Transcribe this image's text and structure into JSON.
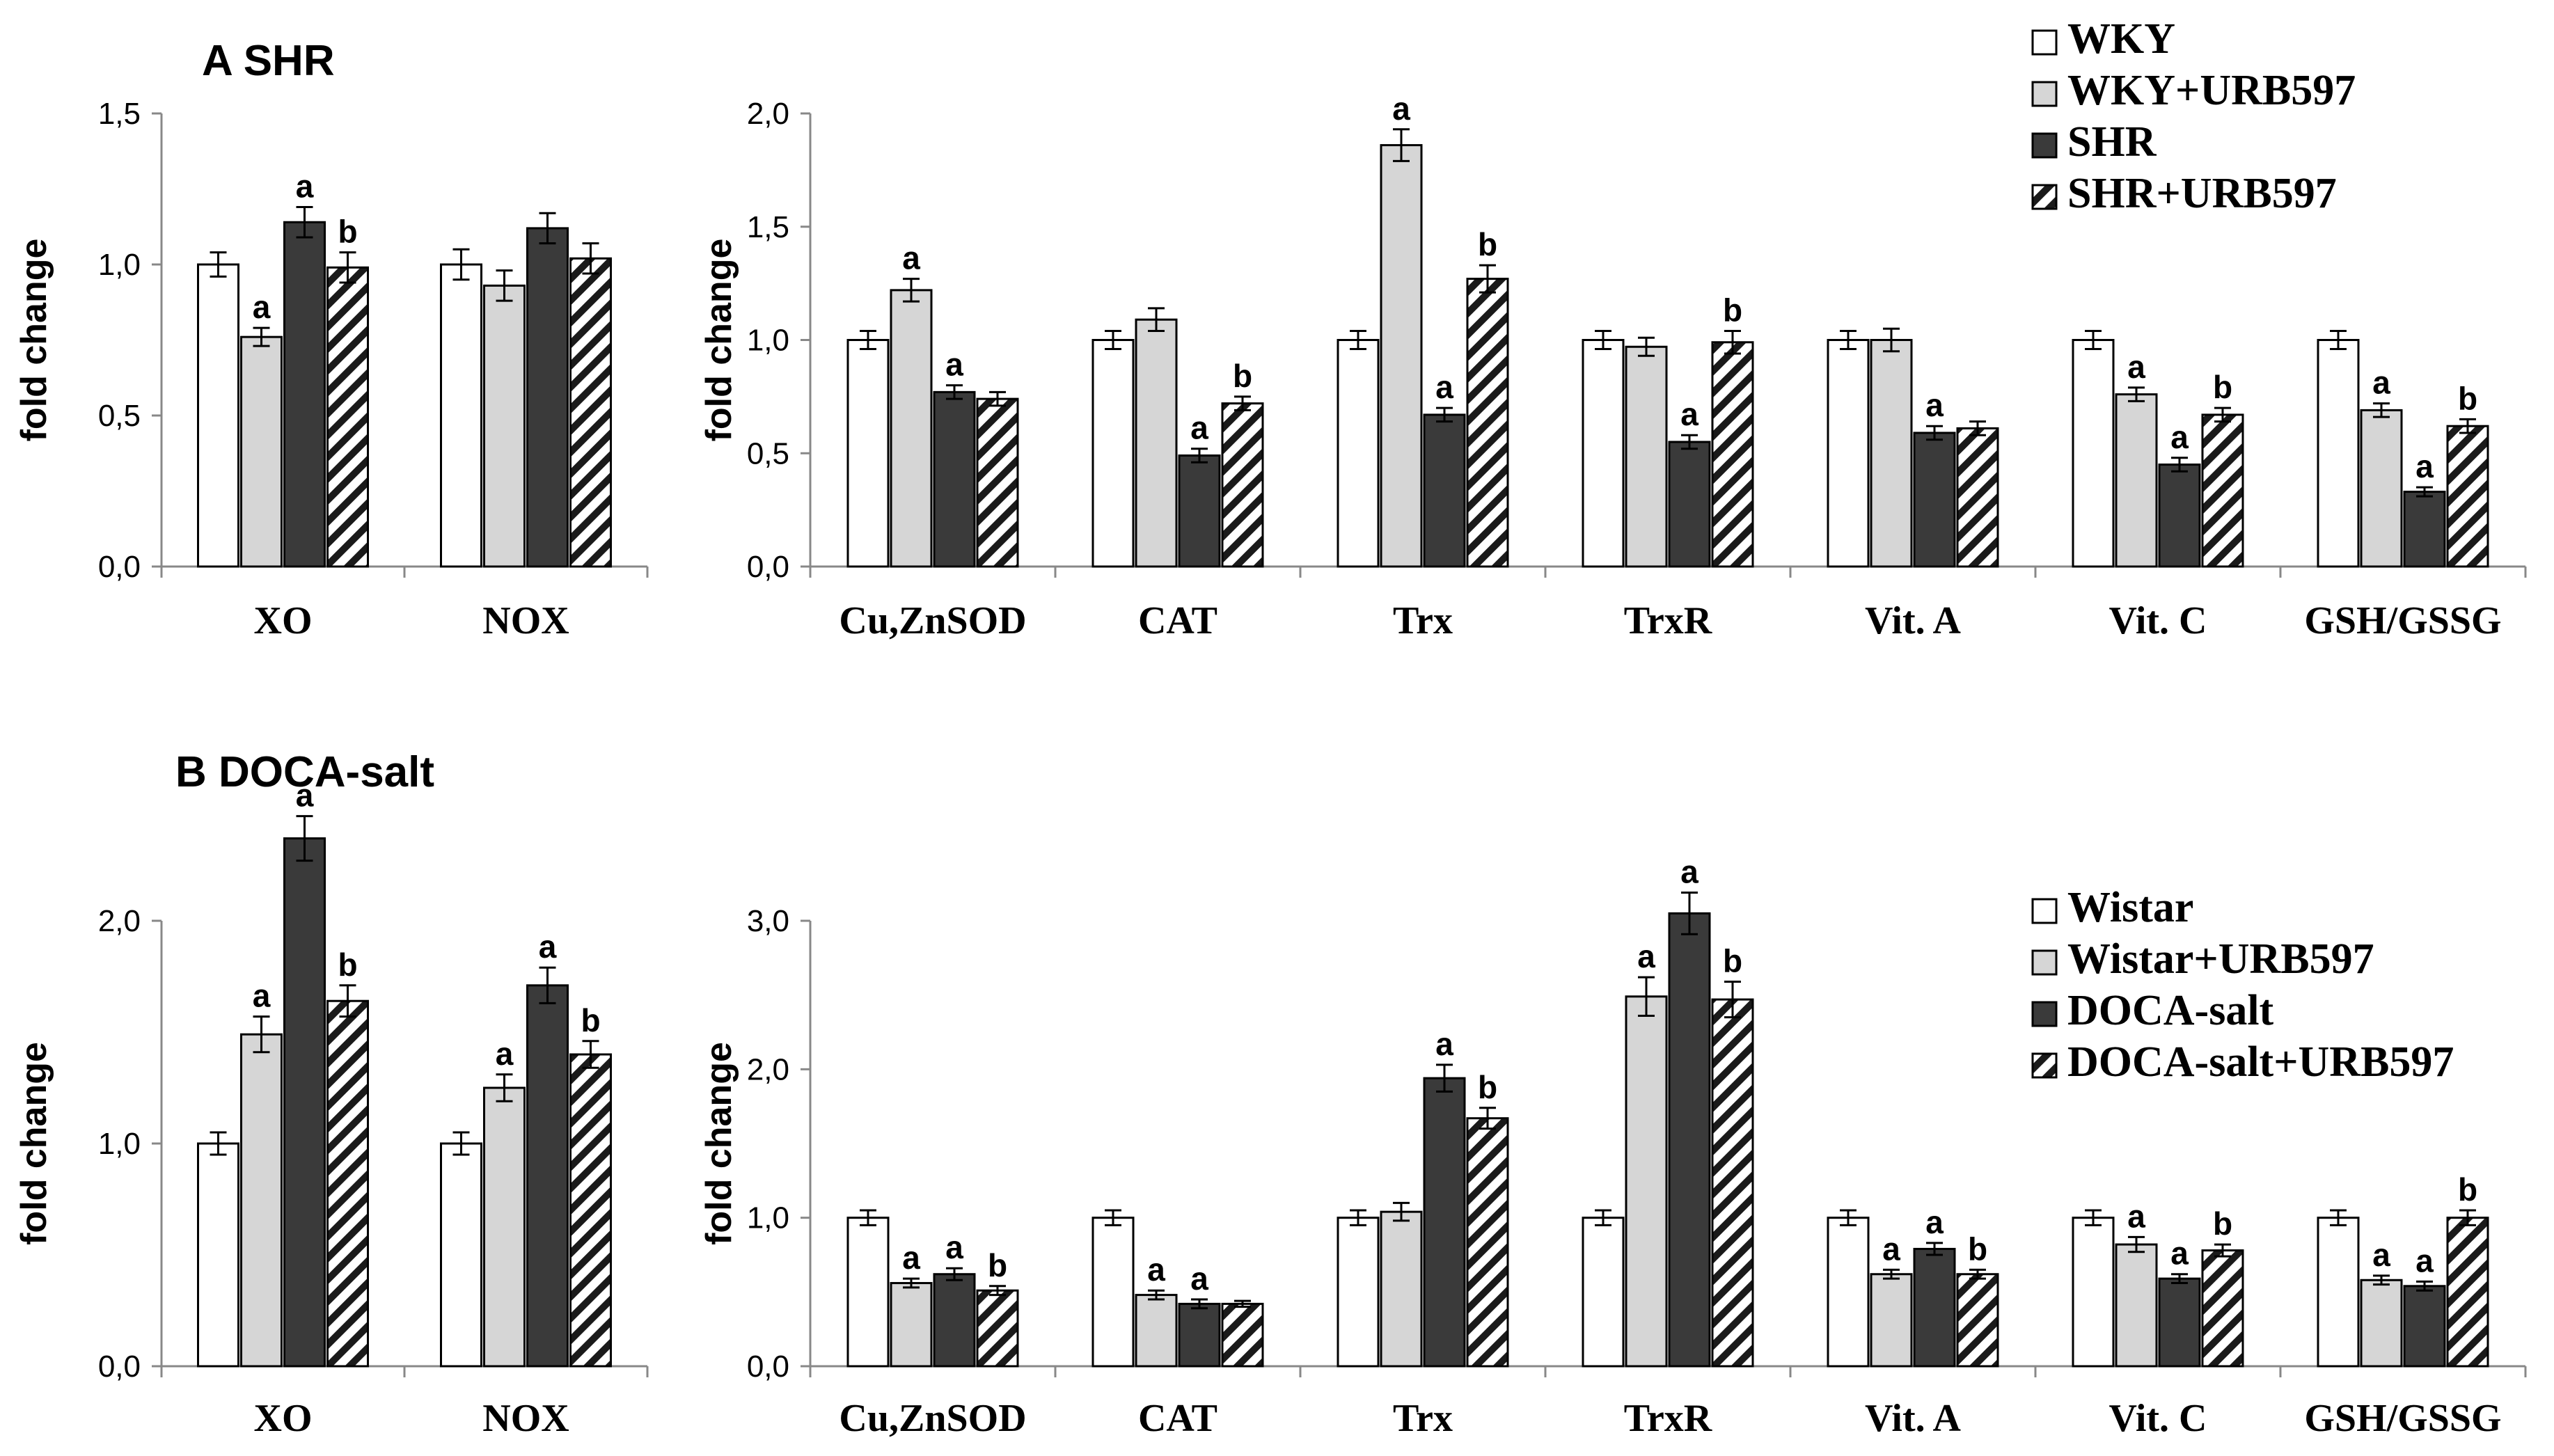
{
  "chart_data": [
    {
      "type": "bar",
      "panel_title": "A SHR",
      "ylabel": "fold change",
      "ylim": [
        0,
        1.5
      ],
      "yticks": [
        "0,0",
        "0,5",
        "1,0",
        "1,5"
      ],
      "ytick_values": [
        0,
        0.5,
        1.0,
        1.5
      ],
      "categories": [
        "XO",
        "NOX"
      ],
      "series": [
        {
          "name": "WKY",
          "values": [
            1.0,
            1.0
          ],
          "errors": [
            0.04,
            0.05
          ],
          "sig": [
            "",
            ""
          ]
        },
        {
          "name": "WKY+URB597",
          "values": [
            0.76,
            0.93
          ],
          "errors": [
            0.03,
            0.05
          ],
          "sig": [
            "a",
            ""
          ]
        },
        {
          "name": "SHR",
          "values": [
            1.14,
            1.12
          ],
          "errors": [
            0.05,
            0.05
          ],
          "sig": [
            "a",
            ""
          ]
        },
        {
          "name": "SHR+URB597",
          "values": [
            0.99,
            1.02
          ],
          "errors": [
            0.05,
            0.05
          ],
          "sig": [
            "b",
            ""
          ]
        }
      ]
    },
    {
      "type": "bar",
      "ylabel": "fold change",
      "ylim": [
        0,
        2.0
      ],
      "yticks": [
        "0,0",
        "0,5",
        "1,0",
        "1,5",
        "2,0"
      ],
      "ytick_values": [
        0,
        0.5,
        1.0,
        1.5,
        2.0
      ],
      "categories": [
        "Cu,ZnSOD",
        "CAT",
        "Trx",
        "TrxR",
        "Vit. A",
        "Vit. C",
        "GSH/GSSG"
      ],
      "series": [
        {
          "name": "WKY",
          "values": [
            1.0,
            1.0,
            1.0,
            1.0,
            1.0,
            1.0,
            1.0
          ],
          "errors": [
            0.04,
            0.04,
            0.04,
            0.04,
            0.04,
            0.04,
            0.04
          ],
          "sig": [
            "",
            "",
            "",
            "",
            "",
            "",
            ""
          ]
        },
        {
          "name": "WKY+URB597",
          "values": [
            1.22,
            1.09,
            1.86,
            0.97,
            1.0,
            0.76,
            0.69
          ],
          "errors": [
            0.05,
            0.05,
            0.07,
            0.04,
            0.05,
            0.03,
            0.03
          ],
          "sig": [
            "a",
            "",
            "a",
            "",
            "",
            "a",
            "a"
          ]
        },
        {
          "name": "SHR",
          "values": [
            0.77,
            0.49,
            0.67,
            0.55,
            0.59,
            0.45,
            0.33
          ],
          "errors": [
            0.03,
            0.03,
            0.03,
            0.03,
            0.03,
            0.03,
            0.02
          ],
          "sig": [
            "a",
            "a",
            "a",
            "a",
            "a",
            "a",
            "a"
          ]
        },
        {
          "name": "SHR+URB597",
          "values": [
            0.74,
            0.72,
            1.27,
            0.99,
            0.61,
            0.67,
            0.62
          ],
          "errors": [
            0.03,
            0.03,
            0.06,
            0.05,
            0.03,
            0.03,
            0.03
          ],
          "sig": [
            "",
            "b",
            "b",
            "b",
            "",
            "b",
            "b"
          ]
        }
      ],
      "legend": [
        "WKY",
        "WKY+URB597",
        "SHR",
        "SHR+URB597"
      ],
      "legend_position": "top-right"
    },
    {
      "type": "bar",
      "panel_title": "B DOCA-salt",
      "ylabel": "fold change",
      "ylim": [
        0,
        2.0
      ],
      "yticks": [
        "0,0",
        "1,0",
        "2,0"
      ],
      "ytick_values": [
        0,
        1.0,
        2.0
      ],
      "categories": [
        "XO",
        "NOX"
      ],
      "series": [
        {
          "name": "Wistar",
          "values": [
            1.0,
            1.0
          ],
          "errors": [
            0.05,
            0.05
          ],
          "sig": [
            "",
            ""
          ]
        },
        {
          "name": "Wistar+URB597",
          "values": [
            1.49,
            1.25
          ],
          "errors": [
            0.08,
            0.06
          ],
          "sig": [
            "a",
            "a"
          ]
        },
        {
          "name": "DOCA-salt",
          "values": [
            2.37,
            1.71
          ],
          "errors": [
            0.1,
            0.08
          ],
          "sig": [
            "a",
            "a"
          ]
        },
        {
          "name": "DOCA-salt+URB597",
          "values": [
            1.64,
            1.4
          ],
          "errors": [
            0.07,
            0.06
          ],
          "sig": [
            "b",
            "b"
          ]
        }
      ]
    },
    {
      "type": "bar",
      "ylabel": "fold change",
      "ylim": [
        0,
        3.0
      ],
      "yticks": [
        "0,0",
        "1,0",
        "2,0",
        "3,0"
      ],
      "ytick_values": [
        0,
        1.0,
        2.0,
        3.0
      ],
      "categories": [
        "Cu,ZnSOD",
        "CAT",
        "Trx",
        "TrxR",
        "Vit. A",
        "Vit. C",
        "GSH/GSSG"
      ],
      "series": [
        {
          "name": "Wistar",
          "values": [
            1.0,
            1.0,
            1.0,
            1.0,
            1.0,
            1.0,
            1.0
          ],
          "errors": [
            0.05,
            0.05,
            0.05,
            0.05,
            0.05,
            0.05,
            0.05
          ],
          "sig": [
            "",
            "",
            "",
            "",
            "",
            "",
            ""
          ]
        },
        {
          "name": "Wistar+URB597",
          "values": [
            0.56,
            0.48,
            1.04,
            2.49,
            0.62,
            0.82,
            0.58
          ],
          "errors": [
            0.03,
            0.03,
            0.06,
            0.13,
            0.03,
            0.05,
            0.03
          ],
          "sig": [
            "a",
            "a",
            "",
            "a",
            "a",
            "a",
            "a"
          ]
        },
        {
          "name": "DOCA-salt",
          "values": [
            0.62,
            0.42,
            1.94,
            3.05,
            0.79,
            0.59,
            0.54
          ],
          "errors": [
            0.04,
            0.03,
            0.09,
            0.14,
            0.04,
            0.03,
            0.03
          ],
          "sig": [
            "a",
            "a",
            "a",
            "a",
            "a",
            "a",
            "a"
          ]
        },
        {
          "name": "DOCA-salt+URB597",
          "values": [
            0.51,
            0.42,
            1.67,
            2.47,
            0.62,
            0.78,
            1.0
          ],
          "errors": [
            0.03,
            0.02,
            0.07,
            0.12,
            0.03,
            0.04,
            0.05
          ],
          "sig": [
            "b",
            "",
            "b",
            "b",
            "b",
            "b",
            "b"
          ]
        }
      ],
      "legend": [
        "Wistar",
        "Wistar+URB597",
        "DOCA-salt",
        "DOCA-salt+URB597"
      ],
      "legend_position": "top-right"
    }
  ]
}
